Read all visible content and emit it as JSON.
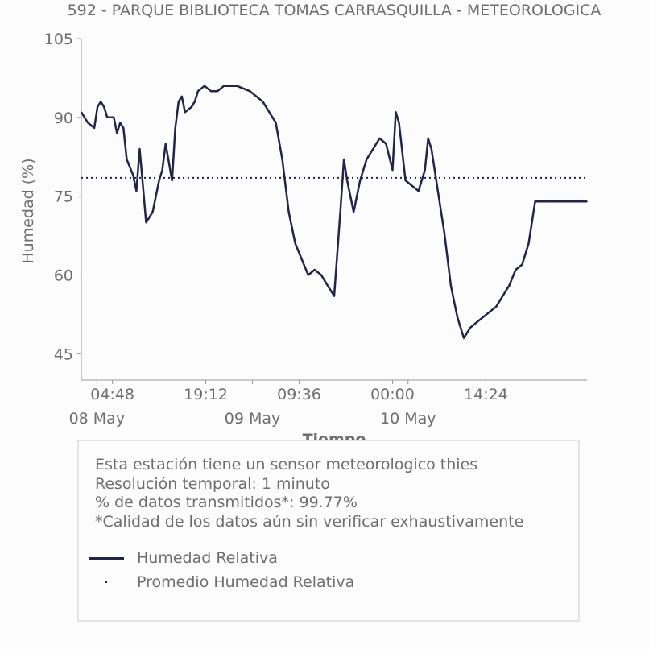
{
  "colors": {
    "series": "#22244a",
    "text": "#6e6e6e",
    "axis": "#999999"
  },
  "chart_data": {
    "type": "line",
    "title": "592 - PARQUE BIBLIOTECA TOMAS CARRASQUILLA - METEOROLOGICA",
    "xlabel": "Tiempo",
    "ylabel": "Humedad (%)",
    "ylim": [
      40,
      105
    ],
    "yticks": [
      "45",
      "60",
      "75",
      "90",
      "105"
    ],
    "yticks_values": [
      45,
      60,
      75,
      90,
      105
    ],
    "xlim": [
      "2024-05-08 00:00",
      "2024-05-11 06:00"
    ],
    "xticks": [
      {
        "time": "2024-05-08 04:48",
        "label": "04:48"
      },
      {
        "time": "2024-05-08 19:12",
        "label": "19:12"
      },
      {
        "time": "2024-05-09 09:36",
        "label": "09:36"
      },
      {
        "time": "2024-05-10 00:00",
        "label": "00:00"
      },
      {
        "time": "2024-05-10 14:24",
        "label": "14:24"
      }
    ],
    "xticks_major": [
      {
        "time": "2024-05-08 02:24",
        "label": "08 May"
      },
      {
        "time": "2024-05-09 02:24",
        "label": "09 May"
      },
      {
        "time": "2024-05-10 02:24",
        "label": "10 May"
      }
    ],
    "grid": false,
    "mean_line": 78.5,
    "series": [
      {
        "name": "Humedad Relativa",
        "x": [
          "2024-05-08 00:00",
          "2024-05-08 01:00",
          "2024-05-08 02:00",
          "2024-05-08 02:30",
          "2024-05-08 03:00",
          "2024-05-08 03:30",
          "2024-05-08 04:00",
          "2024-05-08 05:00",
          "2024-05-08 05:30",
          "2024-05-08 06:00",
          "2024-05-08 06:30",
          "2024-05-08 07:00",
          "2024-05-08 08:00",
          "2024-05-08 08:30",
          "2024-05-08 09:00",
          "2024-05-08 10:00",
          "2024-05-08 11:00",
          "2024-05-08 11:30",
          "2024-05-08 12:00",
          "2024-05-08 12:30",
          "2024-05-08 13:00",
          "2024-05-08 14:00",
          "2024-05-08 14:30",
          "2024-05-08 15:00",
          "2024-05-08 15:30",
          "2024-05-08 16:00",
          "2024-05-08 17:00",
          "2024-05-08 17:30",
          "2024-05-08 18:00",
          "2024-05-08 19:00",
          "2024-05-08 20:00",
          "2024-05-08 21:00",
          "2024-05-08 22:00",
          "2024-05-09 00:00",
          "2024-05-09 02:00",
          "2024-05-09 04:00",
          "2024-05-09 06:00",
          "2024-05-09 07:00",
          "2024-05-09 08:00",
          "2024-05-09 09:00",
          "2024-05-09 10:00",
          "2024-05-09 11:00",
          "2024-05-09 12:00",
          "2024-05-09 13:00",
          "2024-05-09 14:00",
          "2024-05-09 15:00",
          "2024-05-09 16:00",
          "2024-05-09 16:30",
          "2024-05-09 17:00",
          "2024-05-09 18:00",
          "2024-05-09 19:00",
          "2024-05-09 20:00",
          "2024-05-09 21:00",
          "2024-05-09 22:00",
          "2024-05-09 23:00",
          "2024-05-10 00:00",
          "2024-05-10 00:30",
          "2024-05-10 01:00",
          "2024-05-10 02:00",
          "2024-05-10 03:00",
          "2024-05-10 04:00",
          "2024-05-10 05:00",
          "2024-05-10 05:30",
          "2024-05-10 06:00",
          "2024-05-10 07:00",
          "2024-05-10 08:00",
          "2024-05-10 09:00",
          "2024-05-10 10:00",
          "2024-05-10 11:00",
          "2024-05-10 12:00",
          "2024-05-10 13:00",
          "2024-05-10 14:00",
          "2024-05-10 15:00",
          "2024-05-10 16:00",
          "2024-05-10 17:00",
          "2024-05-10 18:00",
          "2024-05-10 19:00",
          "2024-05-10 20:00",
          "2024-05-10 21:00",
          "2024-05-10 22:00",
          "2024-05-10 23:00",
          "2024-05-11 00:00",
          "2024-05-11 01:00",
          "2024-05-11 02:00",
          "2024-05-11 03:00",
          "2024-05-11 04:00",
          "2024-05-11 05:00",
          "2024-05-11 06:00"
        ],
        "y": [
          91,
          89,
          88,
          92,
          93,
          92,
          90,
          90,
          87,
          89,
          88,
          82,
          79,
          76,
          84,
          70,
          72,
          75,
          78,
          80,
          85,
          78,
          88,
          93,
          94,
          91,
          92,
          93,
          95,
          96,
          95,
          95,
          96,
          96,
          95,
          93,
          89,
          82,
          72,
          66,
          63,
          60,
          61,
          60,
          58,
          56,
          73,
          82,
          78,
          72,
          78,
          82,
          84,
          86,
          85,
          80,
          91,
          89,
          78,
          77,
          76,
          80,
          86,
          84,
          76,
          68,
          58,
          52,
          48,
          50,
          51,
          52,
          53,
          54,
          56,
          58,
          61,
          62,
          66,
          74,
          74,
          74,
          74,
          74,
          74,
          74,
          74,
          74
        ]
      }
    ],
    "legend": [
      "Humedad Relativa",
      "Promedio Humedad Relativa"
    ]
  },
  "info": {
    "lines": [
      "Esta estación tiene un sensor meteorologico thies",
      "Resolución temporal: 1 minuto",
      "% de datos transmitidos*: 99.77%",
      "*Calidad de los datos aún sin verificar exhaustivamente"
    ]
  }
}
